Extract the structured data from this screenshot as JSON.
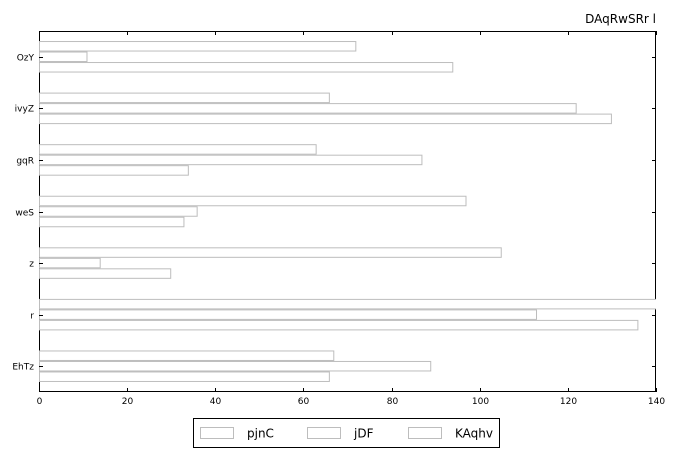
{
  "chart_data": {
    "type": "bar",
    "orientation": "horizontal",
    "title": "DAqRwSRr l",
    "xlabel": "",
    "ylabel": "",
    "xlim": [
      0,
      140
    ],
    "xticks": [
      0,
      20,
      40,
      60,
      80,
      100,
      120,
      140
    ],
    "categories": [
      "OzY",
      "ivyZ",
      "gqR",
      "weS",
      "z",
      "r",
      "EhTz"
    ],
    "series": [
      {
        "name": "pjnC",
        "values": [
          72,
          66,
          63,
          97,
          105,
          141,
          67
        ]
      },
      {
        "name": "jDF",
        "values": [
          11,
          122,
          87,
          36,
          14,
          113,
          89
        ]
      },
      {
        "name": "KAqhv",
        "values": [
          94,
          130,
          34,
          33,
          30,
          136,
          66
        ]
      }
    ],
    "legend_position": "bottom-center",
    "grid": false
  }
}
